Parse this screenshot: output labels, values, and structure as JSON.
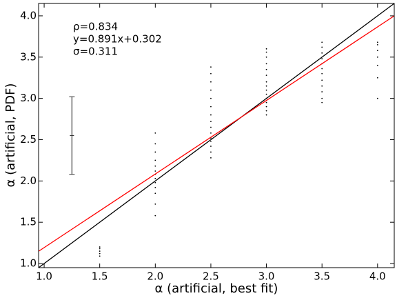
{
  "chart_data": {
    "type": "scatter",
    "xlabel": "α (artificial, best fit)",
    "ylabel": "α (artificial, PDF)",
    "annotations": [
      "ρ=0.834",
      "y=0.891x+0.302",
      "σ=0.311"
    ],
    "xlim": [
      0.95,
      4.15
    ],
    "ylim": [
      0.95,
      4.15
    ],
    "xticks": [
      {
        "value": 1,
        "label": "1.0"
      },
      {
        "value": 1.5,
        "label": "1.5"
      },
      {
        "value": 2,
        "label": "2.0"
      },
      {
        "value": 2.5,
        "label": "2.5"
      },
      {
        "value": 3,
        "label": "3.0"
      },
      {
        "value": 3.5,
        "label": "3.5"
      },
      {
        "value": 4,
        "label": "4.0"
      }
    ],
    "yticks": [
      {
        "value": 1,
        "label": "1.0"
      },
      {
        "value": 1.5,
        "label": "1.5"
      },
      {
        "value": 2,
        "label": "2.0"
      },
      {
        "value": 2.5,
        "label": "2.5"
      },
      {
        "value": 3,
        "label": "3.0"
      },
      {
        "value": 3.5,
        "label": "3.5"
      },
      {
        "value": 4,
        "label": "4.0"
      }
    ],
    "color": "#000000",
    "x": [
      1.5,
      1.5,
      1.5,
      1.5,
      1.5,
      2,
      2,
      2,
      2,
      2,
      2,
      2,
      2,
      2,
      2,
      2,
      2,
      2,
      2.5,
      2.5,
      2.5,
      2.5,
      2.5,
      2.5,
      2.5,
      2.5,
      2.5,
      2.5,
      2.5,
      2.5,
      2.5,
      2.5,
      2.5,
      3,
      3,
      3,
      3,
      3,
      3,
      3,
      3,
      3,
      3,
      3,
      3,
      3,
      3,
      3,
      3.5,
      3.5,
      3.5,
      3.5,
      3.5,
      3.5,
      3.5,
      3.5,
      3.5,
      3.5,
      3.5,
      3.5,
      4,
      4,
      4,
      4,
      4,
      4,
      4
    ],
    "y": [
      1.09,
      1.12,
      1.15,
      1.18,
      1.2,
      1.58,
      1.72,
      1.85,
      1.92,
      1.98,
      2.03,
      2.08,
      2.12,
      2.18,
      2.25,
      2.35,
      2.45,
      2.58,
      2.28,
      2.35,
      2.42,
      2.48,
      2.52,
      2.58,
      2.65,
      2.72,
      2.8,
      2.9,
      3.0,
      3.1,
      3.2,
      3.3,
      3.38,
      2.8,
      2.85,
      2.9,
      2.95,
      3.0,
      3.05,
      3.1,
      3.15,
      3.2,
      3.28,
      3.35,
      3.42,
      3.5,
      3.56,
      3.6,
      2.95,
      3.0,
      3.08,
      3.15,
      3.22,
      3.3,
      3.36,
      3.42,
      3.48,
      3.55,
      3.62,
      3.68,
      3.0,
      3.25,
      3.4,
      3.5,
      3.58,
      3.65,
      3.68
    ],
    "errorbar": {
      "x": 1.25,
      "y": 2.55,
      "err": 0.47,
      "color": "#333333"
    },
    "lines": [
      {
        "slope": 1,
        "intercept": 0,
        "color": "#000000"
      },
      {
        "slope": 0.891,
        "intercept": 0.302,
        "color": "#ff0000"
      }
    ]
  }
}
